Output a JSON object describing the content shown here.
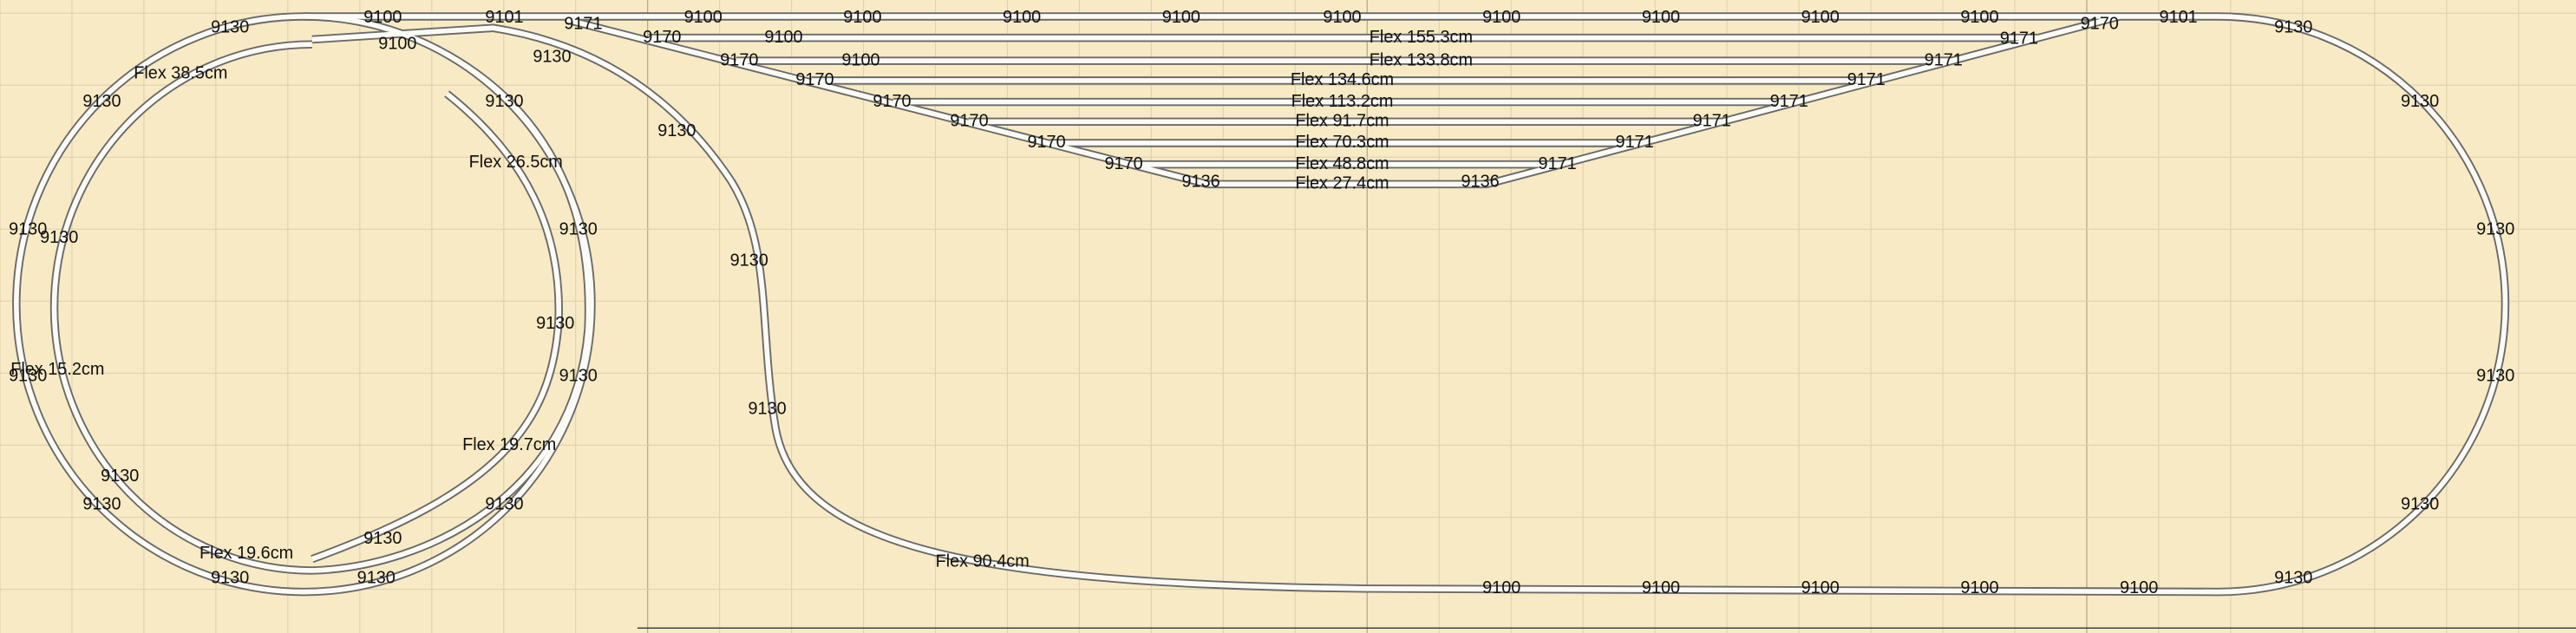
{
  "track_labels": [
    "9130",
    "9100",
    "9101",
    "9171",
    "9100",
    "9100",
    "9100",
    "9100",
    "9100",
    "9100",
    "9100",
    "9100",
    "9100",
    "9170",
    "9101",
    "9130",
    "9170",
    "9100",
    "Flex 155.3cm",
    "9171",
    "9170",
    "9100",
    "Flex 133.8cm",
    "9171",
    "9170",
    "Flex 134.6cm",
    "9171",
    "9170",
    "Flex 113.2cm",
    "9171",
    "9170",
    "Flex 91.7cm",
    "9171",
    "9170",
    "Flex 70.3cm",
    "9171",
    "9170",
    "Flex 48.8cm",
    "9171",
    "9136",
    "Flex 27.4cm",
    "9136",
    "Flex 38.5cm",
    "9100",
    "9130",
    "9130",
    "9130",
    "9130",
    "Flex 26.5cm",
    "9130",
    "9130",
    "9130",
    "9130",
    "9130",
    "Flex 15.2cm",
    "9130",
    "9130",
    "9130",
    "Flex 19.7cm",
    "9130",
    "9130",
    "9130",
    "Flex 19.6cm",
    "9130",
    "9130",
    "9130",
    "Flex 90.4cm",
    "9100",
    "9100",
    "9100",
    "9100",
    "9100",
    "9130",
    "9130",
    "9130",
    "9130",
    "9130"
  ]
}
